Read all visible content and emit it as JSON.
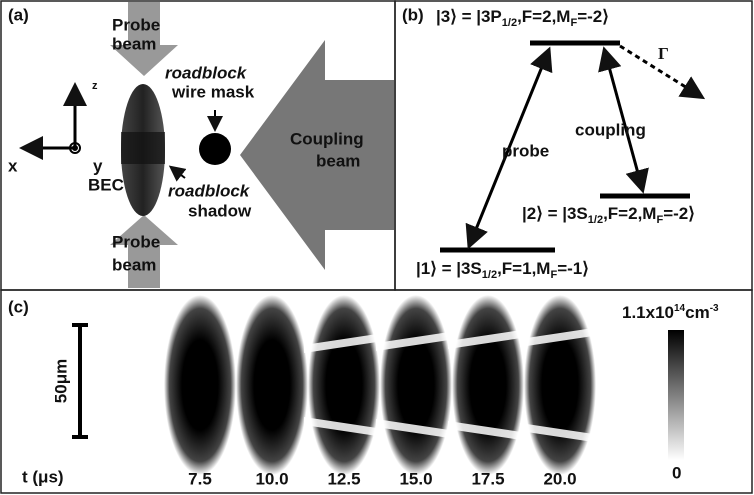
{
  "panel_a": {
    "label": "(a)",
    "probe_top": [
      "Probe",
      "beam"
    ],
    "axis_z": "z",
    "axis_x": "x",
    "axis_y": "y",
    "bec": "BEC",
    "mask": [
      "roadblock",
      "wire mask"
    ],
    "shadow": [
      "roadblock",
      "shadow"
    ],
    "coupling": [
      "Coupling",
      "beam"
    ],
    "probe_bottom": [
      "Probe",
      "beam"
    ]
  },
  "panel_b": {
    "label": "(b)",
    "gamma": "Γ",
    "probe": "probe",
    "coupling": "coupling",
    "state3": [
      "|3⟩ = |3P",
      "1/2",
      ",F=2,M",
      "F",
      "=-2⟩"
    ],
    "state2": [
      "|2⟩ = |3S",
      "1/2",
      ",F=2,M",
      "F",
      "=-2⟩"
    ],
    "state1": [
      "|1⟩ = |3S",
      "1/2",
      ",F=1,M",
      "F",
      "=-1⟩"
    ]
  },
  "panel_c": {
    "label": "(c)",
    "scale": "50μm",
    "time_label": "t (μs)",
    "times": [
      "7.5",
      "10.0",
      "12.5",
      "15.0",
      "17.5",
      "20.0"
    ],
    "colorbar_max": [
      "1.1x10",
      "14",
      "cm",
      "-3"
    ],
    "colorbar_min": "0"
  }
}
